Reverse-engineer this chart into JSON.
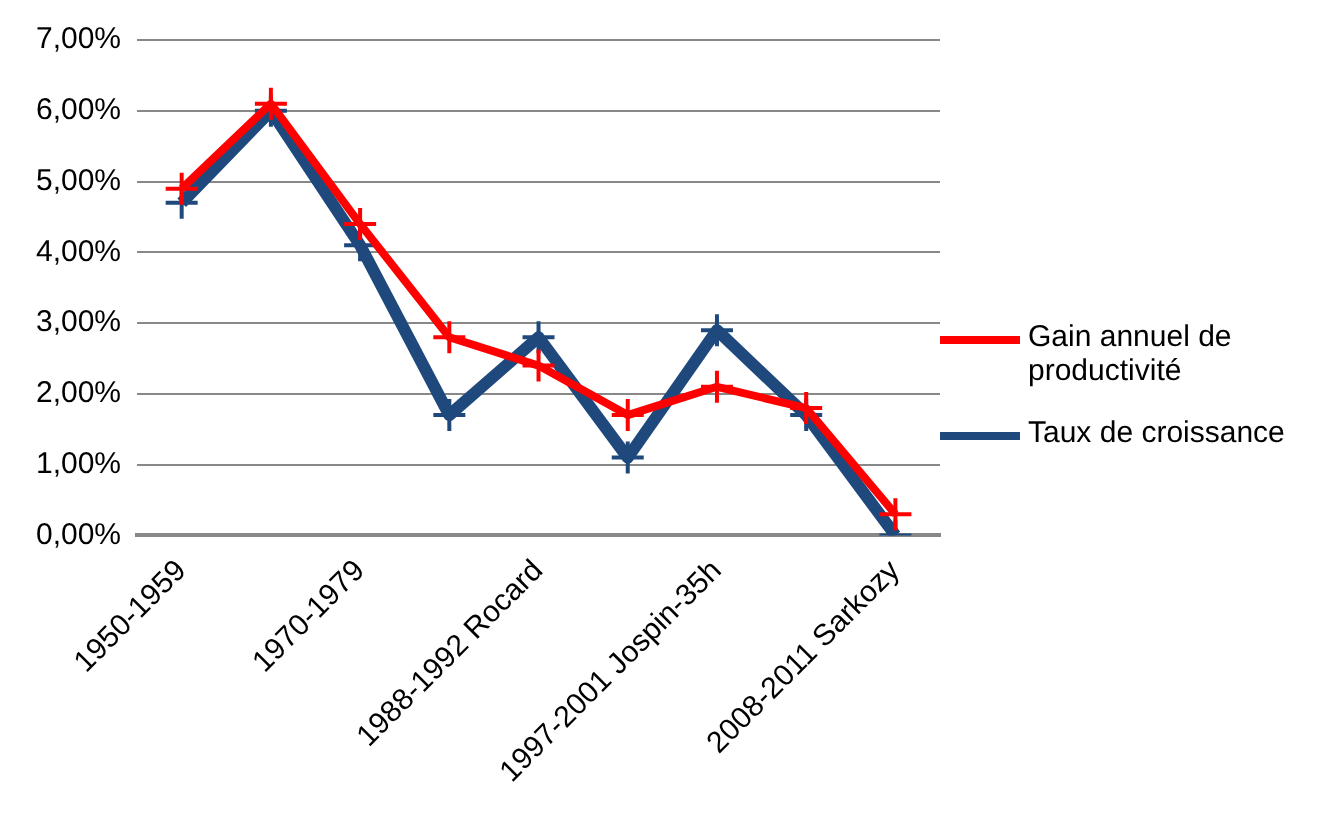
{
  "chart_data": {
    "type": "line",
    "categories": [
      "1950-1959",
      null,
      "1970-1979",
      null,
      "1988-1992 Rocard",
      null,
      "1997-2001 Jospin-35h",
      null,
      "2008-2011 Sarkozy"
    ],
    "series": [
      {
        "name": "Gain annuel de productivité",
        "color": "#ff0000",
        "marker": "cross",
        "values": [
          4.9,
          6.1,
          4.4,
          2.8,
          2.4,
          1.7,
          2.1,
          1.8,
          0.3
        ]
      },
      {
        "name": "Taux de croissance",
        "color": "#1f497d",
        "marker": "cross",
        "values": [
          4.7,
          6.0,
          4.1,
          1.7,
          2.8,
          1.1,
          2.9,
          1.7,
          0.0
        ]
      }
    ],
    "ylim": [
      0,
      7
    ],
    "yticks": [
      {
        "value": 0,
        "label": "0,00%"
      },
      {
        "value": 1,
        "label": "1,00%"
      },
      {
        "value": 2,
        "label": "2,00%"
      },
      {
        "value": 3,
        "label": "3,00%"
      },
      {
        "value": 4,
        "label": "4,00%"
      },
      {
        "value": 5,
        "label": "5,00%"
      },
      {
        "value": 6,
        "label": "6,00%"
      },
      {
        "value": 7,
        "label": "7,00%"
      }
    ],
    "grid": "y",
    "legend": "right",
    "line_style": "solid"
  }
}
